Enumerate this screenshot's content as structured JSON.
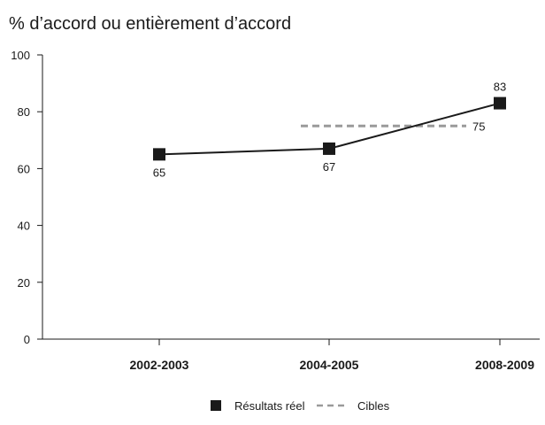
{
  "chart_data": {
    "type": "line",
    "title": "% d’accord ou entièrement d’accord",
    "xlabel": "",
    "ylabel": "",
    "categories": [
      "2002-2003",
      "2004-2005",
      "2008-2009"
    ],
    "ylim": [
      0,
      100
    ],
    "yticks": [
      0,
      20,
      40,
      60,
      80,
      100
    ],
    "grid": false,
    "legend_position": "bottom",
    "series": [
      {
        "name": "Résultats réel",
        "style": "solid",
        "marker": "square",
        "color": "#1a1a1a",
        "points": [
          {
            "x": "2002-2003",
            "y": 65,
            "label": "65"
          },
          {
            "x": "2004-2005",
            "y": 67,
            "label": "67"
          },
          {
            "x": "2008-2009",
            "y": 83,
            "label": "83"
          }
        ]
      },
      {
        "name": "Cibles",
        "style": "dashed",
        "marker": "none",
        "color": "#9a9a9a",
        "points": [
          {
            "x": "2004-2005",
            "y": 75,
            "label": ""
          },
          {
            "x": "2008-2009",
            "y": 75,
            "label": "75"
          }
        ]
      }
    ]
  }
}
